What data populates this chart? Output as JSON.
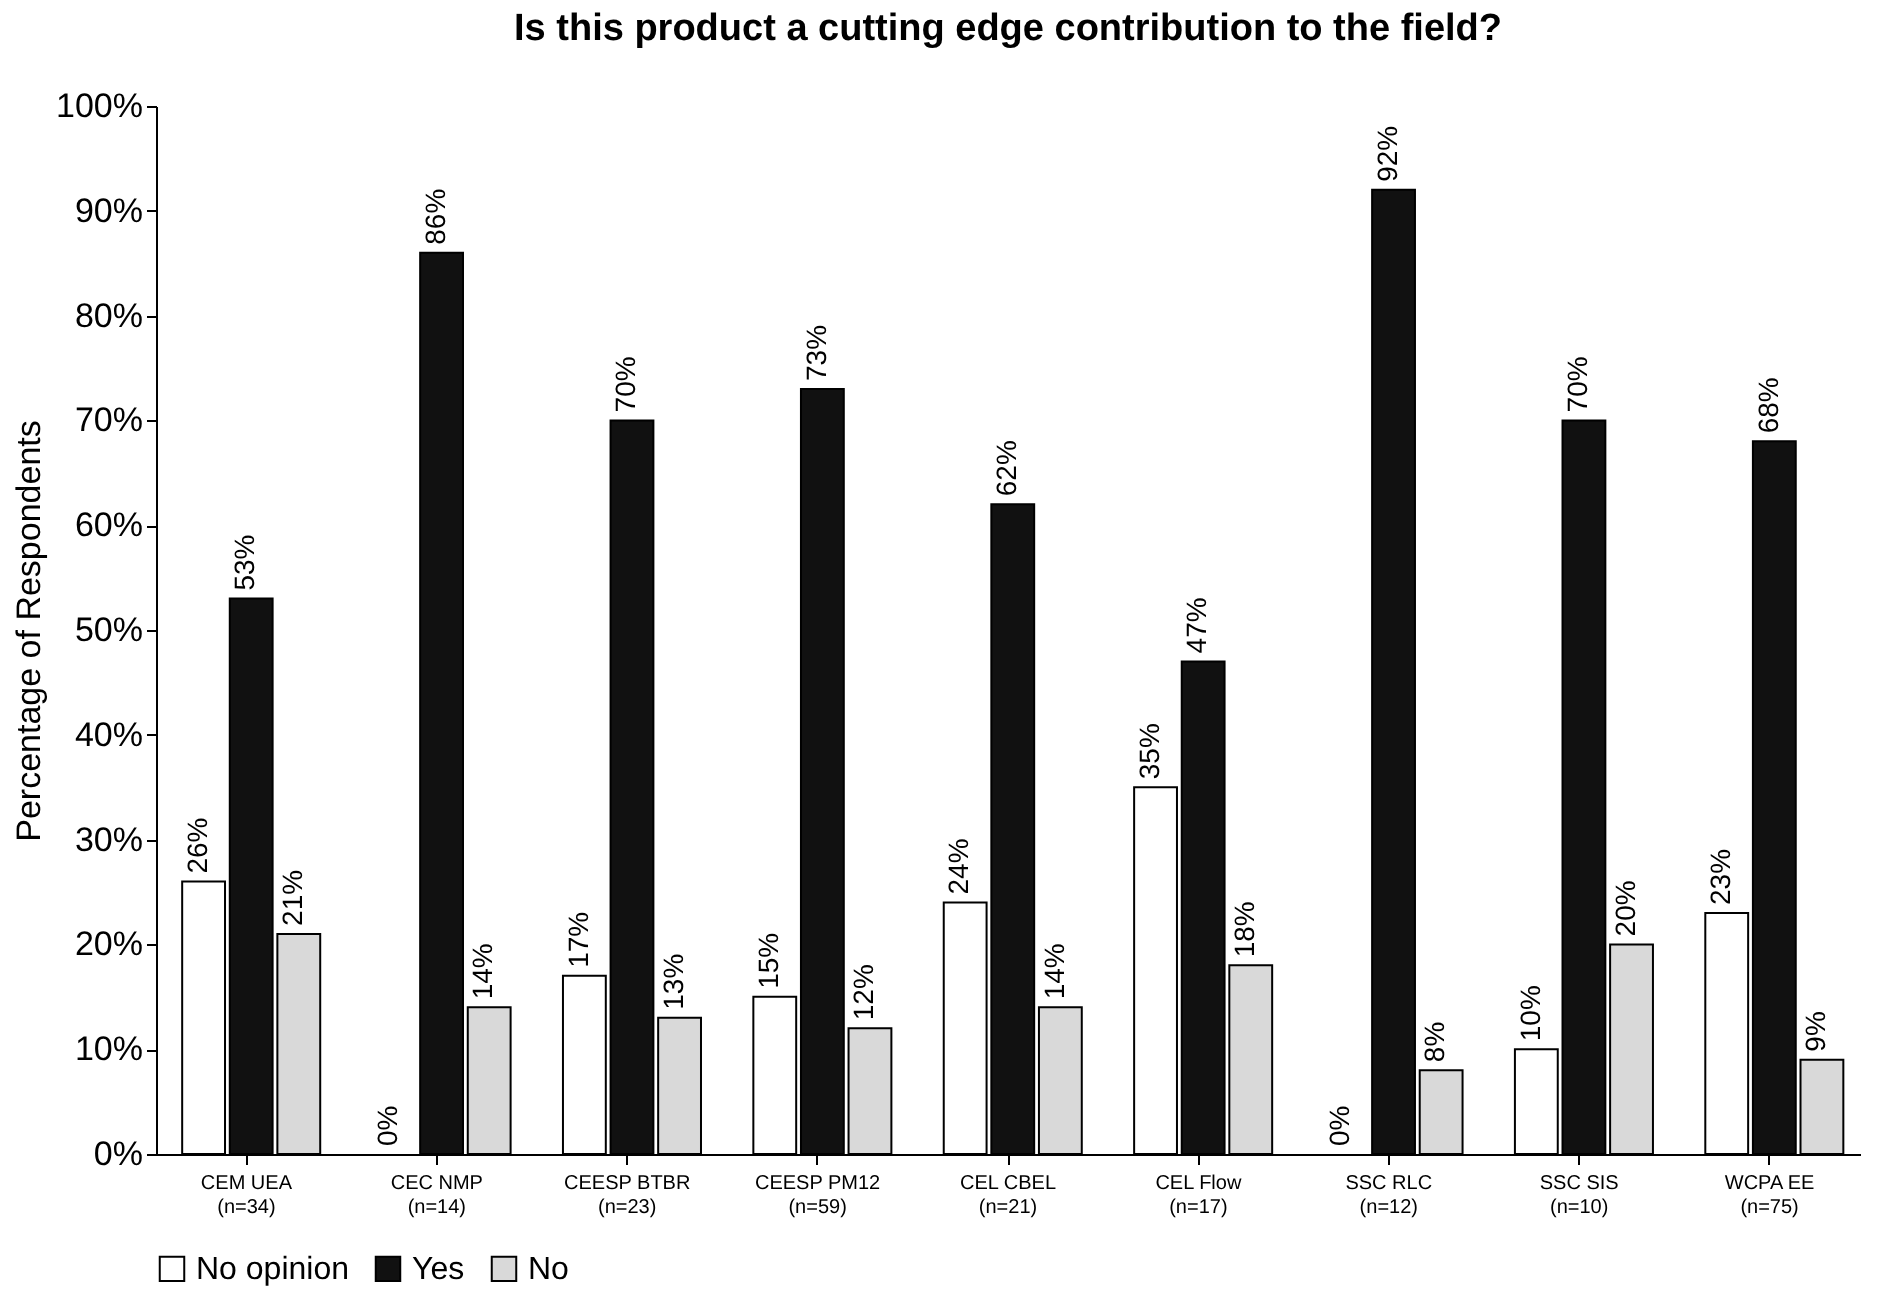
{
  "chart_data": {
    "type": "bar",
    "title": "Is this product a cutting edge contribution to the field?",
    "ylabel": "Percentage of Respondents",
    "categories": [
      "CEM UEA\n(n=34)",
      "CEC NMP\n(n=14)",
      "CEESP BTBR\n(n=23)",
      "CEESP PM12\n(n=59)",
      "CEL CBEL\n(n=21)",
      "CEL Flow\n(n=17)",
      "SSC RLC\n(n=12)",
      "SSC SIS\n(n=10)",
      "WCPA EE\n(n=75)"
    ],
    "series": [
      {
        "name": "No opinion",
        "color": "#ffffff",
        "values": [
          26,
          0,
          17,
          15,
          24,
          35,
          0,
          10,
          23
        ],
        "value_labels": [
          "26%",
          "0%",
          "17%",
          "15%",
          "24%",
          "35%",
          "0%",
          "10%",
          "23%"
        ]
      },
      {
        "name": "Yes",
        "color": "#111111",
        "values": [
          53,
          86,
          70,
          73,
          62,
          47,
          92,
          70,
          68
        ],
        "value_labels": [
          "53%",
          "86%",
          "70%",
          "73%",
          "62%",
          "47%",
          "92%",
          "70%",
          "68%"
        ]
      },
      {
        "name": "No",
        "color": "#d9d9d9",
        "values": [
          21,
          14,
          13,
          12,
          14,
          18,
          8,
          20,
          9
        ],
        "value_labels": [
          "21%",
          "14%",
          "13%",
          "12%",
          "14%",
          "18%",
          "8%",
          "20%",
          "9%"
        ]
      }
    ],
    "ylim": [
      0,
      100
    ],
    "yticks": [
      {
        "value": 0,
        "label": "0%"
      },
      {
        "value": 10,
        "label": "10%"
      },
      {
        "value": 20,
        "label": "20%"
      },
      {
        "value": 30,
        "label": "30%"
      },
      {
        "value": 40,
        "label": "40%"
      },
      {
        "value": 50,
        "label": "50%"
      },
      {
        "value": 60,
        "label": "60%"
      },
      {
        "value": 70,
        "label": "70%"
      },
      {
        "value": 80,
        "label": "80%"
      },
      {
        "value": 90,
        "label": "90%"
      },
      {
        "value": 100,
        "label": "100%"
      }
    ],
    "grid": false,
    "legend": "bottom"
  }
}
